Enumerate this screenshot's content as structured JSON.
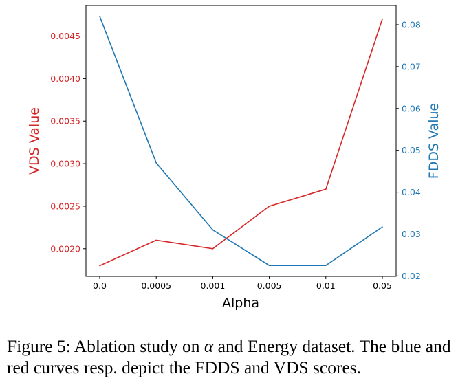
{
  "chart_data": {
    "type": "line",
    "xlabel": "Alpha",
    "ylabel_left": "VDS Value",
    "ylabel_right": "FDDS Value",
    "categories": [
      "0.0",
      "0.0005",
      "0.001",
      "0.005",
      "0.01",
      "0.05"
    ],
    "series": [
      {
        "name": "VDS",
        "axis": "left",
        "color": "#d62728",
        "values": [
          0.0018,
          0.0021,
          0.002,
          0.0025,
          0.0027,
          0.0047
        ]
      },
      {
        "name": "FDDS",
        "axis": "right",
        "color": "#1f77b4",
        "values": [
          0.082,
          0.047,
          0.031,
          0.0225,
          0.0225,
          0.0317
        ]
      }
    ],
    "left_ticks": [
      "0.0020",
      "0.0025",
      "0.0030",
      "0.0035",
      "0.0040",
      "0.0045"
    ],
    "right_ticks": [
      "0.02",
      "0.03",
      "0.04",
      "0.05",
      "0.06",
      "0.07",
      "0.08"
    ],
    "ylim_left": [
      0.001675,
      0.00486
    ],
    "ylim_right": [
      0.0199,
      0.0846
    ],
    "grid": false
  },
  "caption": {
    "prefix": "Figure 5: Ablation study on ",
    "symbol": "α",
    "suffix": " and Energy dataset. The blue and red curves resp. depict the FDDS and VDS scores."
  }
}
